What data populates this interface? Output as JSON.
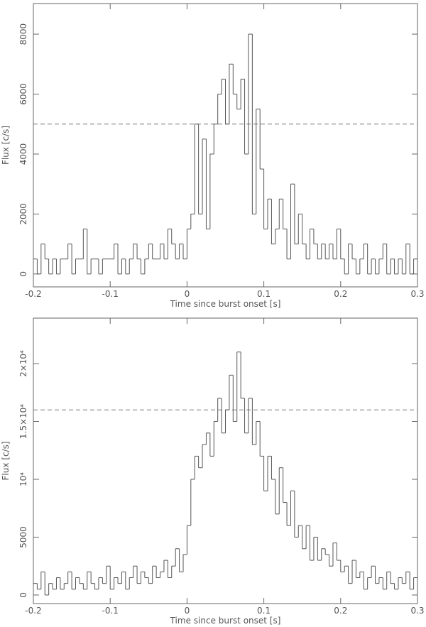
{
  "chart_data": [
    {
      "type": "histogram",
      "x_label": "Time since burst onset [s]",
      "y_label": "Flux [c/s]",
      "color": "#555555",
      "xlim": [
        -0.2,
        0.3
      ],
      "xticks": [
        -0.2,
        -0.1,
        0,
        0.1,
        0.2,
        0.3
      ],
      "ylim": [
        -430,
        9020
      ],
      "yticks": [
        0,
        2000,
        4000,
        6000,
        8000
      ],
      "threshold": 5000,
      "bins": [
        -0.2,
        -0.195,
        -0.19,
        -0.185,
        -0.18,
        -0.175,
        -0.17,
        -0.165,
        -0.16,
        -0.155,
        -0.15,
        -0.145,
        -0.14,
        -0.135,
        -0.13,
        -0.125,
        -0.12,
        -0.115,
        -0.11,
        -0.105,
        -0.1,
        -0.095,
        -0.09,
        -0.085,
        -0.08,
        -0.075,
        -0.07,
        -0.065,
        -0.06,
        -0.055,
        -0.05,
        -0.045,
        -0.04,
        -0.035,
        -0.03,
        -0.025,
        -0.02,
        -0.015,
        -0.01,
        -0.005,
        0,
        0.005,
        0.01,
        0.015,
        0.02,
        0.025,
        0.03,
        0.035,
        0.04,
        0.045,
        0.05,
        0.055,
        0.06,
        0.065,
        0.07,
        0.075,
        0.08,
        0.085,
        0.09,
        0.095,
        0.1,
        0.105,
        0.11,
        0.115,
        0.12,
        0.125,
        0.13,
        0.135,
        0.14,
        0.145,
        0.15,
        0.155,
        0.16,
        0.165,
        0.17,
        0.175,
        0.18,
        0.185,
        0.19,
        0.195,
        0.2,
        0.205,
        0.21,
        0.215,
        0.22,
        0.225,
        0.23,
        0.235,
        0.24,
        0.245,
        0.25,
        0.255,
        0.26,
        0.265,
        0.27,
        0.275,
        0.28,
        0.285,
        0.29,
        0.295,
        0.3
      ],
      "values": [
        500,
        0,
        1000,
        500,
        0,
        500,
        0,
        500,
        500,
        1000,
        0,
        500,
        500,
        1500,
        0,
        500,
        500,
        0,
        500,
        500,
        500,
        1000,
        0,
        500,
        0,
        500,
        1000,
        500,
        0,
        500,
        1000,
        500,
        500,
        1000,
        500,
        1500,
        1000,
        500,
        1000,
        500,
        1500,
        2000,
        5000,
        2000,
        4500,
        1500,
        4000,
        5000,
        6000,
        6500,
        5000,
        7000,
        6000,
        5500,
        6500,
        4000,
        8000,
        2000,
        5500,
        3500,
        1500,
        2500,
        1000,
        1500,
        2500,
        1500,
        500,
        3000,
        1000,
        2000,
        1000,
        500,
        1500,
        1000,
        500,
        1000,
        500,
        1000,
        500,
        1500,
        500,
        0,
        1000,
        500,
        0,
        500,
        1000,
        0,
        500,
        0,
        500,
        1000,
        0,
        500,
        0,
        500,
        0,
        1000,
        0,
        500
      ]
    },
    {
      "type": "histogram",
      "x_label": "Time since burst onset [s]",
      "y_label": "Flux [c/s]",
      "color": "#555555",
      "xlim": [
        -0.2,
        0.3
      ],
      "xticks": [
        -0.2,
        -0.1,
        0,
        0.1,
        0.2,
        0.3
      ],
      "ylim": [
        -740,
        23930
      ],
      "yticks": [
        0,
        5000,
        {
          "value": 10000,
          "label": "10⁴"
        },
        {
          "value": 15000,
          "label": "1.5×10⁴"
        },
        {
          "value": 20000,
          "label": "2×10⁴"
        }
      ],
      "threshold": 16000,
      "bins": [
        -0.2,
        -0.195,
        -0.19,
        -0.185,
        -0.18,
        -0.175,
        -0.17,
        -0.165,
        -0.16,
        -0.155,
        -0.15,
        -0.145,
        -0.14,
        -0.135,
        -0.13,
        -0.125,
        -0.12,
        -0.115,
        -0.11,
        -0.105,
        -0.1,
        -0.095,
        -0.09,
        -0.085,
        -0.08,
        -0.075,
        -0.07,
        -0.065,
        -0.06,
        -0.055,
        -0.05,
        -0.045,
        -0.04,
        -0.035,
        -0.03,
        -0.025,
        -0.02,
        -0.015,
        -0.01,
        -0.005,
        0,
        0.005,
        0.01,
        0.015,
        0.02,
        0.025,
        0.03,
        0.035,
        0.04,
        0.045,
        0.05,
        0.055,
        0.06,
        0.065,
        0.07,
        0.075,
        0.08,
        0.085,
        0.09,
        0.095,
        0.1,
        0.105,
        0.11,
        0.115,
        0.12,
        0.125,
        0.13,
        0.135,
        0.14,
        0.145,
        0.15,
        0.155,
        0.16,
        0.165,
        0.17,
        0.175,
        0.18,
        0.185,
        0.19,
        0.195,
        0.2,
        0.205,
        0.21,
        0.215,
        0.22,
        0.225,
        0.23,
        0.235,
        0.24,
        0.245,
        0.25,
        0.255,
        0.26,
        0.265,
        0.27,
        0.275,
        0.28,
        0.285,
        0.29,
        0.295,
        0.3
      ],
      "values": [
        1000,
        500,
        2000,
        0,
        1000,
        500,
        1500,
        500,
        1000,
        2000,
        500,
        1500,
        1000,
        500,
        2000,
        1000,
        500,
        1500,
        1000,
        2500,
        500,
        1500,
        1000,
        2000,
        500,
        1500,
        2500,
        1000,
        2000,
        1500,
        1000,
        2500,
        1500,
        2000,
        3000,
        1500,
        2500,
        4000,
        2000,
        3500,
        6000,
        10000,
        12000,
        11000,
        13000,
        14000,
        12000,
        15000,
        17000,
        14000,
        16000,
        19000,
        15000,
        21000,
        17000,
        14000,
        17000,
        13000,
        15000,
        12000,
        9000,
        12000,
        10000,
        7000,
        11000,
        8000,
        6000,
        9000,
        5000,
        6000,
        4000,
        6000,
        3000,
        5000,
        3000,
        4000,
        3500,
        2500,
        4500,
        3000,
        2000,
        2500,
        1000,
        3000,
        1500,
        2000,
        500,
        1500,
        2500,
        1000,
        1500,
        500,
        2000,
        1000,
        500,
        1500,
        1000,
        2000,
        500,
        1500
      ]
    }
  ]
}
